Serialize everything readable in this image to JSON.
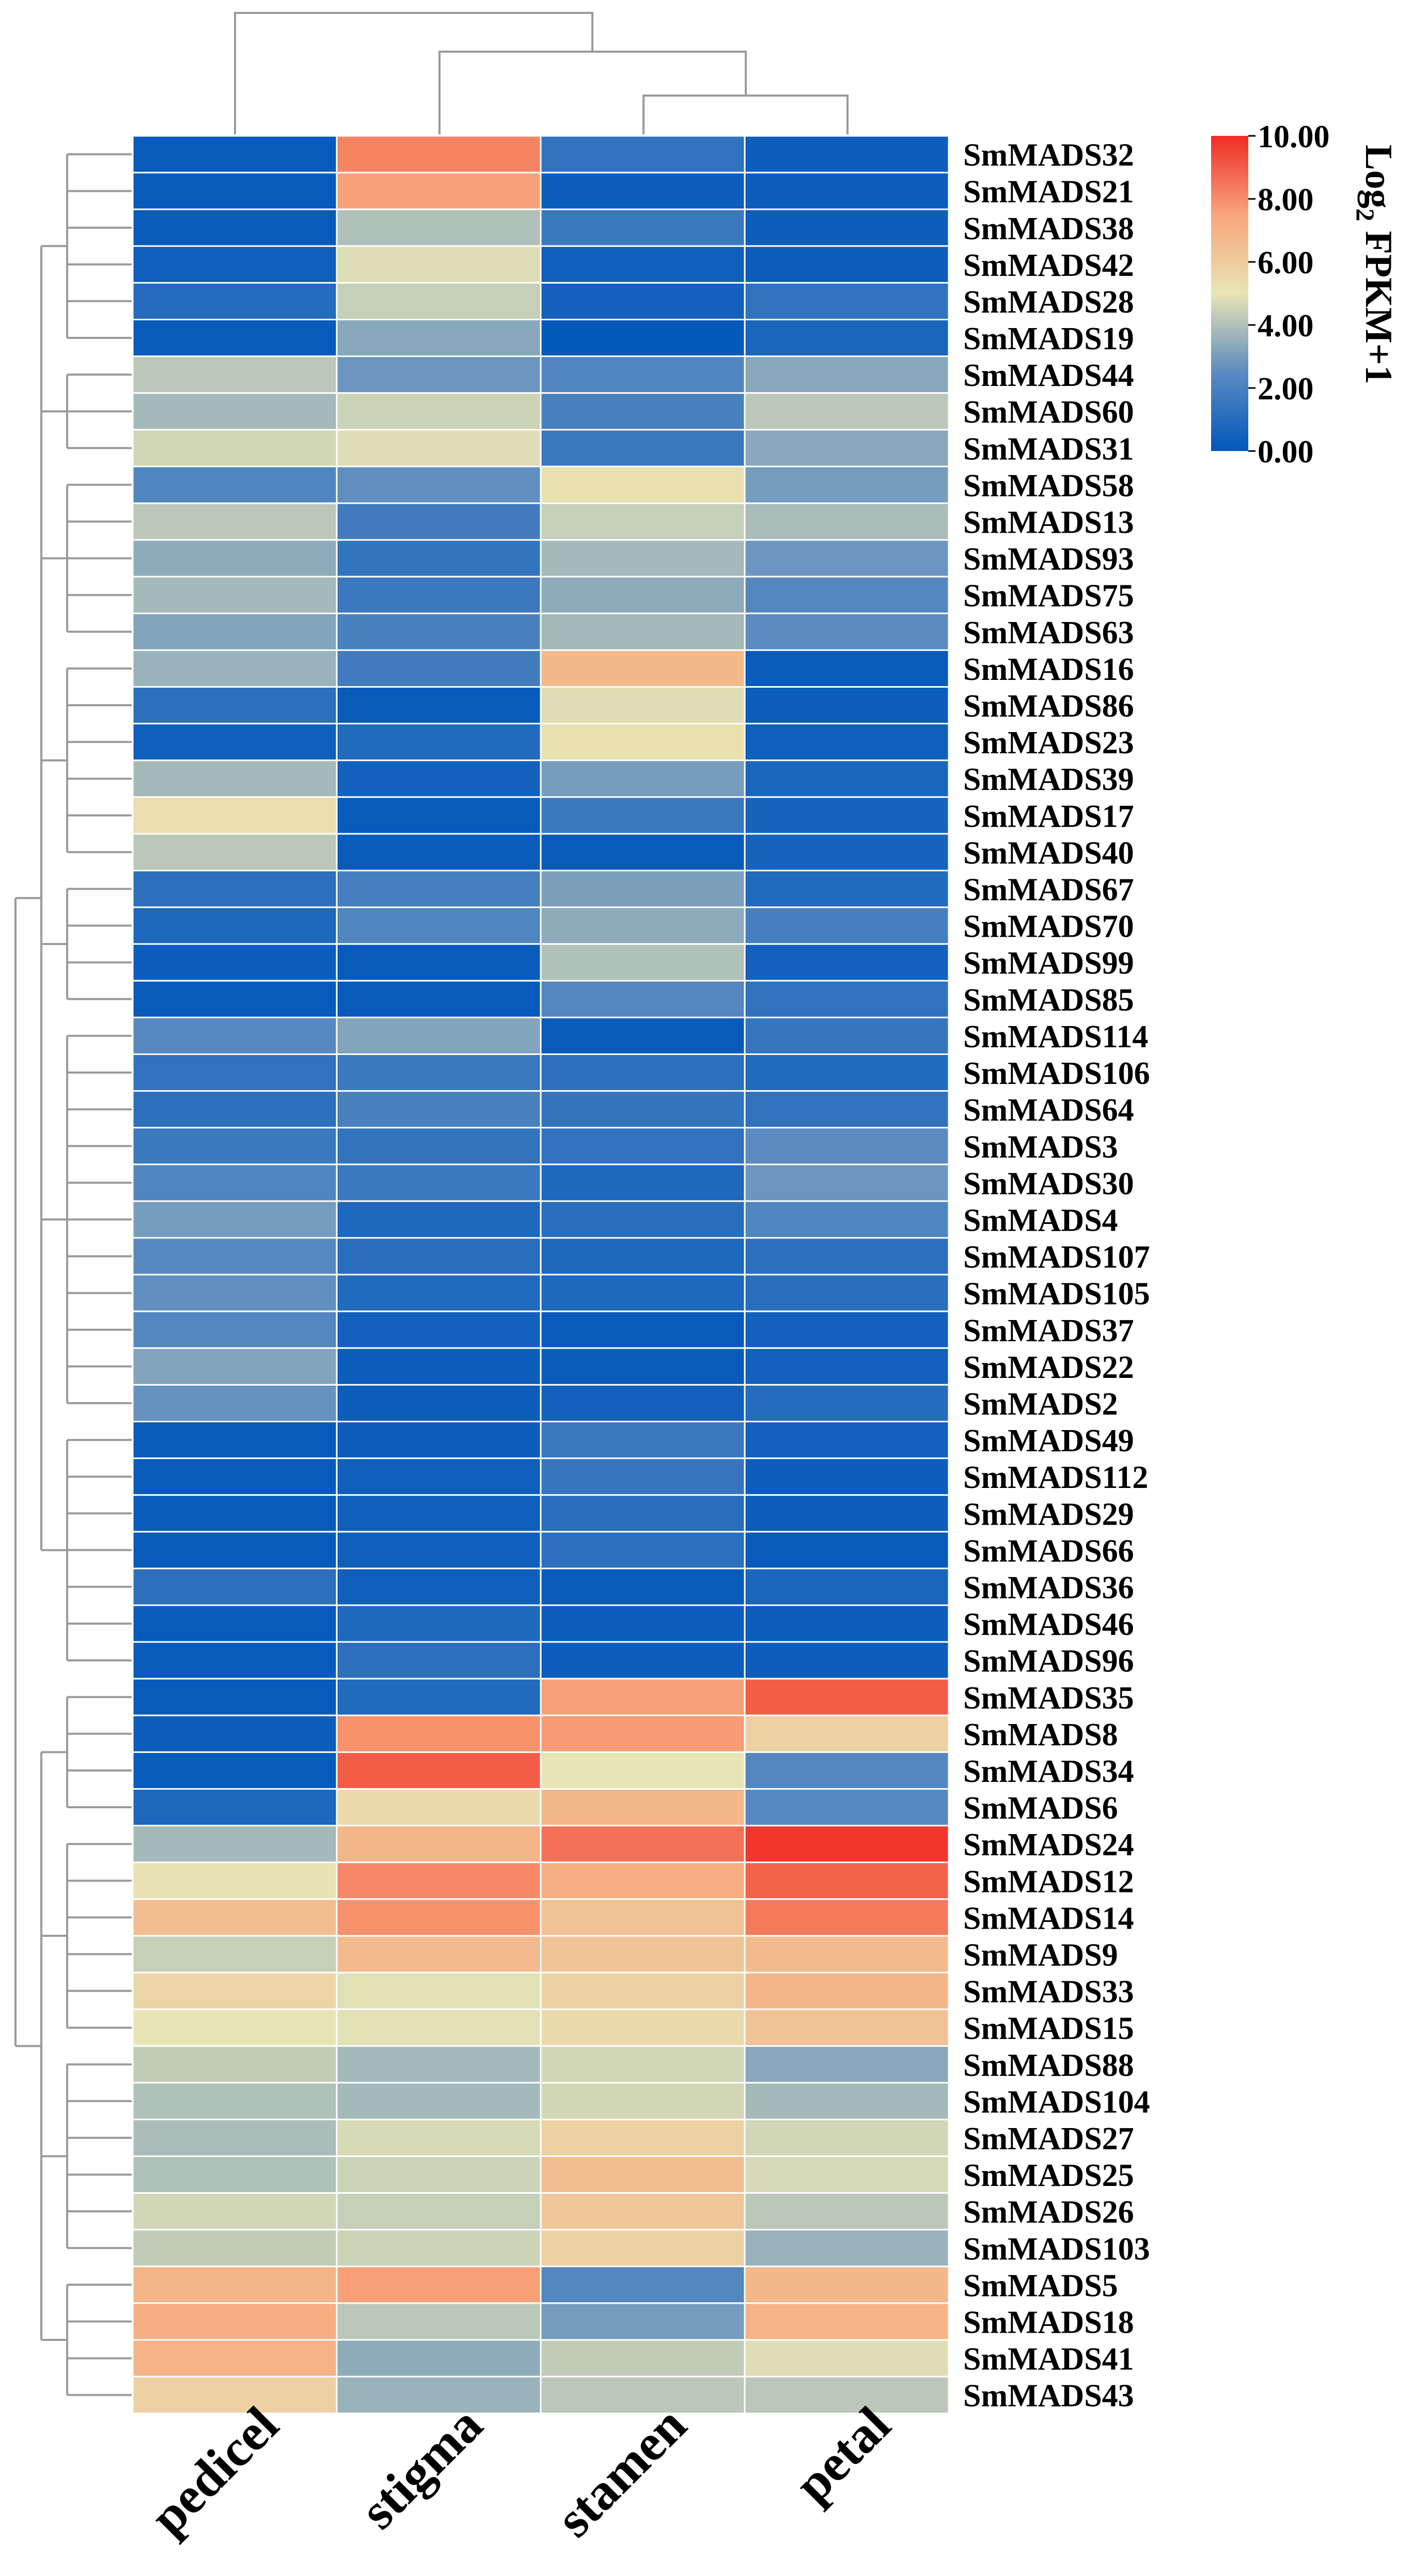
{
  "chart_data": {
    "type": "heatmap",
    "title": "",
    "colorbar": {
      "label": "Log₂ FPKM+1",
      "label_main": "Log",
      "label_sub": "2",
      "label_rest": " FPKM+1",
      "min": 0,
      "max": 10,
      "ticks": [
        "10.00",
        "8.00",
        "6.00",
        "4.00",
        "2.00",
        "0.00"
      ],
      "tick_values": [
        10,
        8,
        6,
        4,
        2,
        0
      ],
      "colors": [
        "#0157bb",
        "#5b8bc0",
        "#e8e5b5",
        "#f8a67b",
        "#ef2c26"
      ]
    },
    "columns": [
      "pedicel",
      "stigma",
      "stamen",
      "petal"
    ],
    "rows": [
      "SmMADS32",
      "SmMADS21",
      "SmMADS38",
      "SmMADS42",
      "SmMADS28",
      "SmMADS19",
      "SmMADS44",
      "SmMADS60",
      "SmMADS31",
      "SmMADS58",
      "SmMADS13",
      "SmMADS93",
      "SmMADS75",
      "SmMADS63",
      "SmMADS16",
      "SmMADS86",
      "SmMADS23",
      "SmMADS39",
      "SmMADS17",
      "SmMADS40",
      "SmMADS67",
      "SmMADS70",
      "SmMADS99",
      "SmMADS85",
      "SmMADS114",
      "SmMADS106",
      "SmMADS64",
      "SmMADS3",
      "SmMADS30",
      "SmMADS4",
      "SmMADS107",
      "SmMADS105",
      "SmMADS37",
      "SmMADS22",
      "SmMADS2",
      "SmMADS49",
      "SmMADS112",
      "SmMADS29",
      "SmMADS66",
      "SmMADS36",
      "SmMADS46",
      "SmMADS96",
      "SmMADS35",
      "SmMADS8",
      "SmMADS34",
      "SmMADS6",
      "SmMADS24",
      "SmMADS12",
      "SmMADS14",
      "SmMADS9",
      "SmMADS33",
      "SmMADS15",
      "SmMADS88",
      "SmMADS104",
      "SmMADS27",
      "SmMADS25",
      "SmMADS26",
      "SmMADS103",
      "SmMADS5",
      "SmMADS18",
      "SmMADS41",
      "SmMADS43"
    ],
    "values": [
      [
        0.2,
        8.2,
        1.3,
        0.3
      ],
      [
        0.2,
        7.6,
        0.3,
        0.3
      ],
      [
        0.2,
        4.0,
        1.6,
        0.3
      ],
      [
        0.4,
        4.8,
        0.4,
        0.3
      ],
      [
        1.0,
        4.4,
        0.5,
        1.3
      ],
      [
        0.2,
        3.3,
        0.1,
        0.7
      ],
      [
        4.2,
        2.8,
        2.2,
        3.3
      ],
      [
        3.8,
        4.5,
        2.0,
        4.2
      ],
      [
        4.6,
        4.8,
        1.6,
        3.3
      ],
      [
        2.2,
        2.6,
        5.2,
        3.0
      ],
      [
        4.2,
        1.8,
        4.4,
        3.9
      ],
      [
        3.4,
        1.4,
        3.8,
        2.8
      ],
      [
        3.8,
        1.6,
        3.4,
        2.3
      ],
      [
        3.2,
        2.0,
        3.8,
        2.5
      ],
      [
        3.6,
        1.8,
        6.8,
        0.2
      ],
      [
        1.2,
        0.2,
        4.8,
        0.3
      ],
      [
        0.4,
        0.9,
        5.2,
        0.4
      ],
      [
        3.8,
        0.5,
        3.0,
        0.7
      ],
      [
        5.3,
        0.2,
        1.6,
        0.6
      ],
      [
        4.2,
        0.2,
        0.2,
        0.6
      ],
      [
        1.2,
        1.9,
        3.1,
        0.9
      ],
      [
        0.8,
        2.2,
        3.4,
        1.9
      ],
      [
        0.3,
        0.2,
        4.0,
        0.5
      ],
      [
        0.2,
        0.2,
        2.3,
        1.3
      ],
      [
        2.4,
        3.2,
        0.2,
        1.5
      ],
      [
        1.3,
        1.6,
        1.2,
        0.9
      ],
      [
        1.2,
        2.0,
        1.4,
        1.3
      ],
      [
        1.6,
        1.4,
        1.3,
        2.5
      ],
      [
        2.2,
        1.6,
        0.8,
        2.8
      ],
      [
        3.0,
        0.8,
        1.1,
        2.2
      ],
      [
        2.4,
        1.1,
        0.8,
        1.2
      ],
      [
        2.6,
        0.9,
        0.8,
        1.1
      ],
      [
        2.3,
        0.5,
        0.2,
        0.5
      ],
      [
        3.2,
        0.3,
        0.2,
        0.5
      ],
      [
        2.7,
        0.3,
        0.5,
        1.0
      ],
      [
        0.2,
        0.3,
        1.6,
        0.5
      ],
      [
        0.2,
        0.4,
        1.5,
        0.3
      ],
      [
        0.2,
        0.4,
        1.1,
        0.3
      ],
      [
        0.2,
        0.4,
        1.2,
        0.2
      ],
      [
        1.2,
        0.4,
        0.2,
        0.7
      ],
      [
        0.2,
        0.8,
        0.3,
        0.3
      ],
      [
        0.2,
        1.2,
        0.3,
        0.3
      ],
      [
        0.2,
        0.9,
        7.6,
        9.0
      ],
      [
        0.3,
        7.9,
        7.7,
        5.8
      ],
      [
        0.2,
        9.0,
        5.0,
        2.3
      ],
      [
        0.8,
        5.4,
        6.8,
        2.4
      ],
      [
        3.8,
        6.9,
        8.6,
        9.8
      ],
      [
        5.1,
        8.1,
        7.2,
        8.9
      ],
      [
        6.6,
        7.9,
        6.4,
        8.4
      ],
      [
        4.4,
        6.7,
        6.3,
        6.7
      ],
      [
        5.6,
        4.9,
        5.8,
        6.9
      ],
      [
        5.0,
        4.9,
        5.4,
        6.4
      ],
      [
        4.3,
        3.8,
        4.6,
        3.3
      ],
      [
        4.0,
        3.8,
        4.6,
        3.8
      ],
      [
        3.9,
        4.7,
        5.8,
        4.6
      ],
      [
        4.0,
        4.5,
        6.6,
        4.7
      ],
      [
        4.6,
        4.4,
        6.2,
        4.2
      ],
      [
        4.3,
        4.5,
        5.8,
        3.6
      ],
      [
        6.9,
        7.6,
        2.3,
        6.8
      ],
      [
        7.2,
        4.2,
        3.0,
        7.0
      ],
      [
        7.0,
        3.4,
        4.3,
        4.8
      ],
      [
        5.8,
        3.6,
        4.2,
        4.2
      ]
    ]
  }
}
